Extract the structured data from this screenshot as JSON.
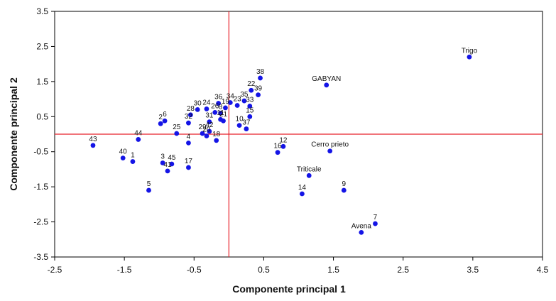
{
  "chart_data": {
    "type": "scatter",
    "xlabel": "Componente principal 1",
    "ylabel": "Componente principal 2",
    "xlim": [
      -2.5,
      4.5
    ],
    "ylim": [
      -3.5,
      3.5
    ],
    "xticks": [
      "-2.5",
      "-1.5",
      "-0.5",
      "0.5",
      "1.5",
      "2.5",
      "3.5",
      "4.5"
    ],
    "yticks": [
      "3.5",
      "2.5",
      "1.5",
      "0.5",
      "-0.5",
      "-1.5",
      "-2.5",
      "-3.5"
    ],
    "reference_lines": {
      "x": 0,
      "y": 0,
      "color": "#e8202a"
    },
    "grid": false,
    "point_color": "#1414e6",
    "points": [
      {
        "label": "Trigo",
        "x": 3.45,
        "y": 2.2
      },
      {
        "label": "GABYAN",
        "x": 1.4,
        "y": 1.4
      },
      {
        "label": "Cerro prieto",
        "x": 1.45,
        "y": -0.48
      },
      {
        "label": "Triticale",
        "x": 1.15,
        "y": -1.18
      },
      {
        "label": "Avena",
        "x": 1.9,
        "y": -2.8
      },
      {
        "label": "7",
        "x": 2.1,
        "y": -2.55
      },
      {
        "label": "9",
        "x": 1.65,
        "y": -1.6
      },
      {
        "label": "14",
        "x": 1.05,
        "y": -1.7
      },
      {
        "label": "16",
        "x": 0.7,
        "y": -0.52
      },
      {
        "label": "12",
        "x": 0.78,
        "y": -0.35
      },
      {
        "label": "38",
        "x": 0.45,
        "y": 1.6
      },
      {
        "label": "22",
        "x": 0.32,
        "y": 1.25
      },
      {
        "label": "39",
        "x": 0.42,
        "y": 1.12
      },
      {
        "label": "35",
        "x": 0.22,
        "y": 0.95
      },
      {
        "label": "33",
        "x": 0.3,
        "y": 0.8
      },
      {
        "label": "15",
        "x": 0.3,
        "y": 0.5
      },
      {
        "label": "37",
        "x": 0.25,
        "y": 0.15
      },
      {
        "label": "10",
        "x": 0.15,
        "y": 0.25
      },
      {
        "label": "23",
        "x": 0.12,
        "y": 0.82
      },
      {
        "label": "34",
        "x": 0.02,
        "y": 0.9
      },
      {
        "label": "36",
        "x": -0.15,
        "y": 0.88
      },
      {
        "label": "19",
        "x": -0.05,
        "y": 0.75
      },
      {
        "label": "24",
        "x": -0.32,
        "y": 0.72
      },
      {
        "label": "30",
        "x": -0.45,
        "y": 0.7
      },
      {
        "label": "26",
        "x": -0.2,
        "y": 0.62
      },
      {
        "label": "8",
        "x": -0.12,
        "y": 0.6
      },
      {
        "label": "21",
        "x": -0.08,
        "y": 0.38
      },
      {
        "label": "28",
        "x": -0.55,
        "y": 0.55
      },
      {
        "label": "32",
        "x": -0.58,
        "y": 0.32
      },
      {
        "label": "31",
        "x": -0.28,
        "y": 0.35
      },
      {
        "label": "11",
        "x": -0.12,
        "y": 0.42
      },
      {
        "label": "2",
        "x": -0.98,
        "y": 0.3
      },
      {
        "label": "6",
        "x": -0.92,
        "y": 0.38
      },
      {
        "label": "42",
        "x": -0.28,
        "y": 0.08
      },
      {
        "label": "29",
        "x": -0.38,
        "y": 0.02
      },
      {
        "label": "20",
        "x": -0.32,
        "y": -0.05
      },
      {
        "label": "25",
        "x": -0.75,
        "y": 0.02
      },
      {
        "label": "18",
        "x": -0.18,
        "y": -0.18
      },
      {
        "label": "4",
        "x": -0.58,
        "y": -0.25
      },
      {
        "label": "44",
        "x": -1.3,
        "y": -0.15
      },
      {
        "label": "43",
        "x": -1.95,
        "y": -0.32
      },
      {
        "label": "40",
        "x": -1.52,
        "y": -0.68
      },
      {
        "label": "1",
        "x": -1.38,
        "y": -0.78
      },
      {
        "label": "3",
        "x": -0.95,
        "y": -0.82
      },
      {
        "label": "41",
        "x": -0.88,
        "y": -1.05
      },
      {
        "label": "45",
        "x": -0.82,
        "y": -0.85
      },
      {
        "label": "17",
        "x": -0.58,
        "y": -0.95
      },
      {
        "label": "5",
        "x": -1.15,
        "y": -1.6
      }
    ]
  }
}
